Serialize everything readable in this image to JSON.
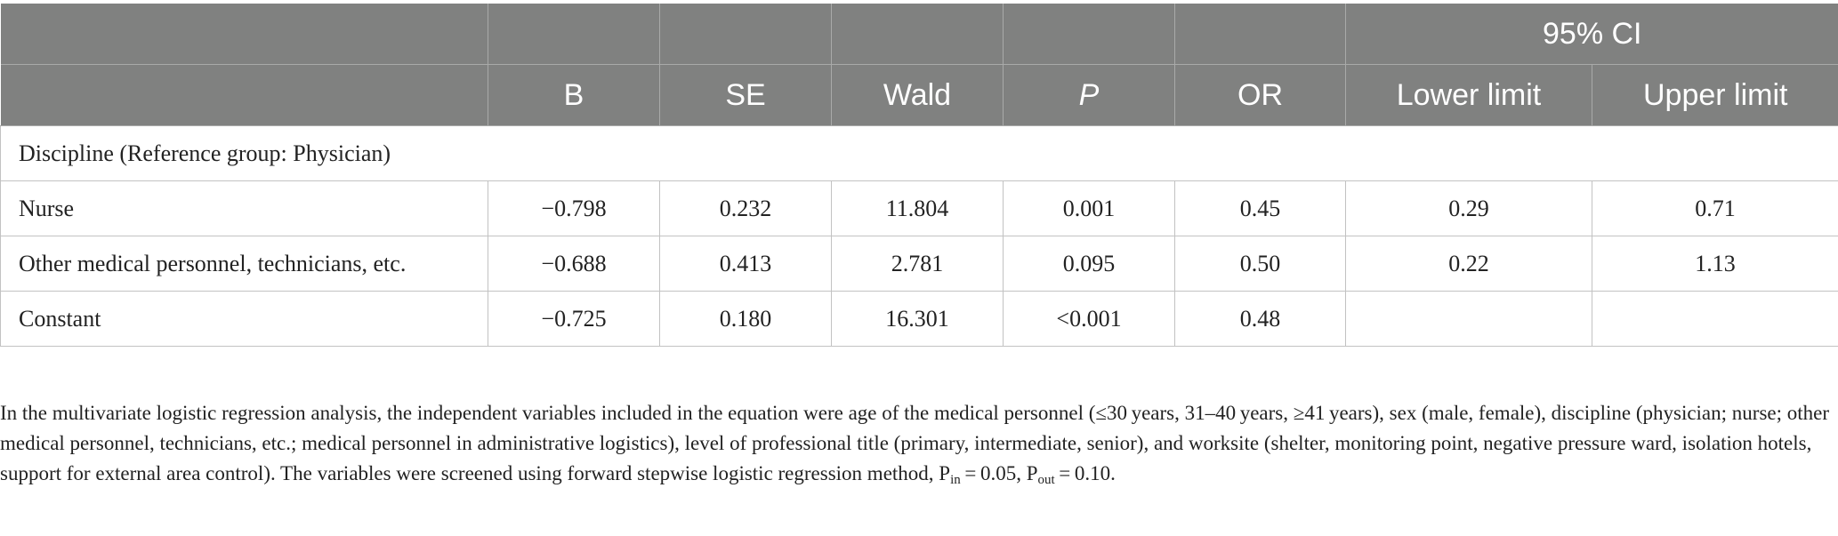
{
  "table": {
    "ci_group_header": "95% CI",
    "columns": [
      "",
      "B",
      "SE",
      "Wald",
      "P",
      "OR",
      "Lower limit",
      "Upper limit"
    ],
    "section_label": "Discipline (Reference group: Physician)",
    "rows": [
      [
        "Nurse",
        "−0.798",
        "0.232",
        "11.804",
        "0.001",
        "0.45",
        "0.29",
        "0.71"
      ],
      [
        "Other medical personnel, technicians, etc.",
        "−0.688",
        "0.413",
        "2.781",
        "0.095",
        "0.50",
        "0.22",
        "1.13"
      ],
      [
        "Constant",
        "−0.725",
        "0.180",
        "16.301",
        "<0.001",
        "0.48",
        "",
        ""
      ]
    ]
  },
  "footnote": {
    "text": "In the multivariate logistic regression analysis, the independent variables included in the equation were age of the medical personnel (≤30 years, 31–40 years, ≥41 years), sex (male, female), discipline (physician; nurse; other medical personnel, technicians, etc.; medical personnel in administrative logistics), level of professional title (primary, intermediate, senior), and worksite (shelter, monitoring point, negative pressure ward, isolation hotels, support for external area control). The variables were screened using forward stepwise logistic regression method, ",
    "p_in_symbol": "P",
    "p_in_sub": "in",
    "p_in_value": " = 0.05, ",
    "p_out_symbol": "P",
    "p_out_sub": "out",
    "p_out_value": " = 0.10."
  },
  "colors": {
    "header_bg": "#808180",
    "header_text": "#ffffff",
    "grid": "#c2c2c2"
  }
}
